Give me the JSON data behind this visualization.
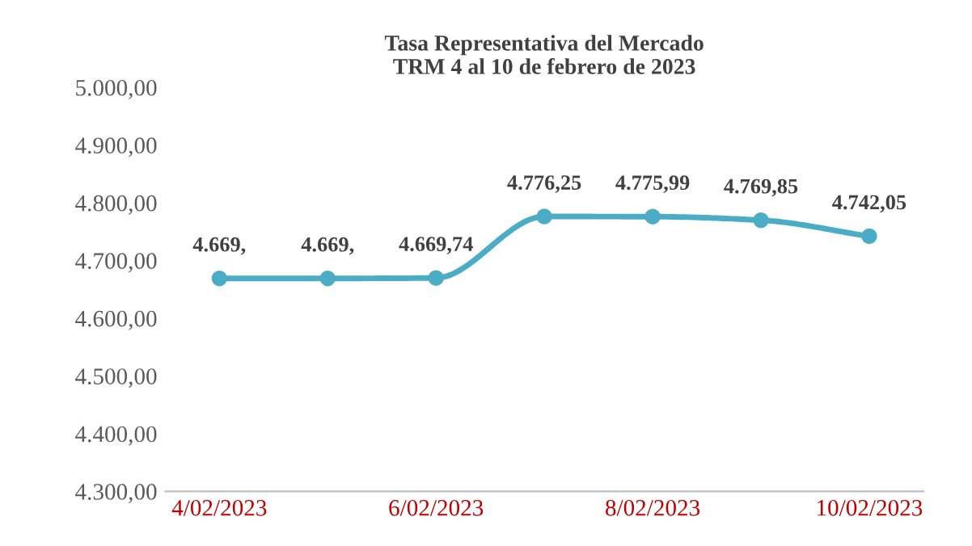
{
  "chart_data": {
    "type": "line",
    "title": "Tasa Representativa del Mercado\nTRM 4 al 10 de febrero de 2023",
    "categories": [
      "4/02/2023",
      null,
      "6/02/2023",
      null,
      "8/02/2023",
      null,
      "10/02/2023"
    ],
    "series": [
      {
        "color": "#4bacc6",
        "values": [
          4669,
          4669,
          4669.74,
          4776.25,
          4775.99,
          4769.85,
          4742.05
        ],
        "value_labels": [
          "4.669,",
          "4.669,",
          "4.669,74",
          "4.776,25",
          "4.775,99",
          "4.769,85",
          "4.742,05"
        ]
      }
    ],
    "ylim": [
      4300,
      5000
    ],
    "yticks": [
      {
        "value": 4300,
        "label": "4.300,00"
      },
      {
        "value": 4400,
        "label": "4.400,00"
      },
      {
        "value": 4500,
        "label": "4.500,00"
      },
      {
        "value": 4600,
        "label": "4.600,00"
      },
      {
        "value": 4700,
        "label": "4.700,00"
      },
      {
        "value": 4800,
        "label": "4.800,00"
      },
      {
        "value": 4900,
        "label": "4.900,00"
      },
      {
        "value": 5000,
        "label": "5.000,00"
      }
    ],
    "marker": "circle",
    "line_style": "solid",
    "grid": false,
    "legend": false
  }
}
